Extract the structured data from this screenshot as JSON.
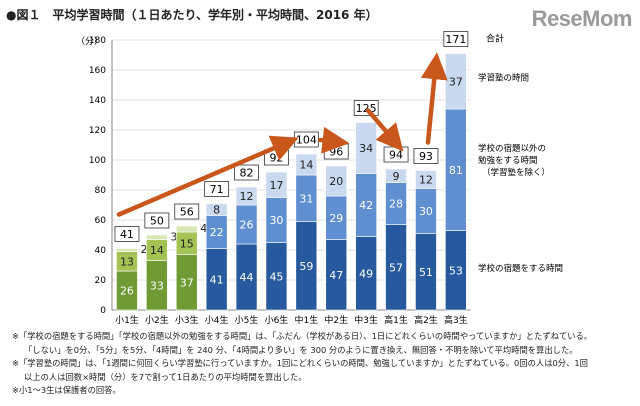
{
  "header": {
    "title": "●図１　平均学習時間（１日あたり、学年別・平均時間、2016 年）",
    "logo": "ReseMom"
  },
  "chart_data": {
    "type": "bar",
    "stacked": true,
    "title": "平均学習時間（１日あたり、学年別・平均時間、2016 年）",
    "ylabel": "（分）",
    "ylim": [
      0,
      180
    ],
    "yticks": [
      0,
      20,
      40,
      60,
      80,
      100,
      120,
      140,
      160,
      180
    ],
    "categories": [
      "小1生",
      "小2生",
      "小3生",
      "小4生",
      "小5生",
      "小6生",
      "中1生",
      "中2生",
      "中3生",
      "高1生",
      "高2生",
      "高3生"
    ],
    "series": [
      {
        "name": "学校の宿題をする時間",
        "values": [
          26,
          33,
          37,
          41,
          44,
          45,
          59,
          47,
          49,
          57,
          51,
          53
        ]
      },
      {
        "name": "学校の宿題以外の勉強をする時間（学習塾を除く）",
        "values": [
          13,
          14,
          15,
          22,
          26,
          30,
          31,
          29,
          42,
          28,
          30,
          81
        ]
      },
      {
        "name": "学習塾の時間",
        "values": [
          2,
          3,
          4,
          8,
          12,
          17,
          14,
          20,
          34,
          9,
          12,
          37
        ]
      }
    ],
    "totals": [
      41,
      50,
      56,
      71,
      82,
      92,
      104,
      96,
      125,
      94,
      93,
      171
    ],
    "legend": {
      "total": "合計",
      "juku": "学習塾の時間",
      "other": [
        "学校の宿題以外の",
        "勉強をする時間",
        "（学習塾を除く）"
      ],
      "homework": "学校の宿題をする時間"
    },
    "colors": {
      "homework_elem": "#6f9a34",
      "other_elem": "#a3c455",
      "juku_elem": "#d7e8b2",
      "homework": "#26599e",
      "other": "#5f8fd0",
      "juku": "#c9d9f0",
      "arrow": "#c9561a"
    }
  },
  "notes": [
    "※「学校の宿題をする時間」「学校の宿題以外の勉強をする時間」は、「ふだん（学校がある日）、1日にどれくらいの時間やっていますか」とたずねている。",
    "「しない」を0分、「5分」を5分、「4時間」を 240 分、「4時間より多い」を 300 分のように置き換え、無回答・不明を除いて平均時間を算出した。",
    "※「学習塾の時間」は、「1週間に何回くらい学習塾に行っていますか。1回にどれくらいの時間、勉強していますか」とたずねている。0回の人は0分、1回",
    "以上の人は回数×時間（分）を7で割って1日あたりの平均時間を算出した。",
    "※小1～3生は保護者の回答。"
  ]
}
